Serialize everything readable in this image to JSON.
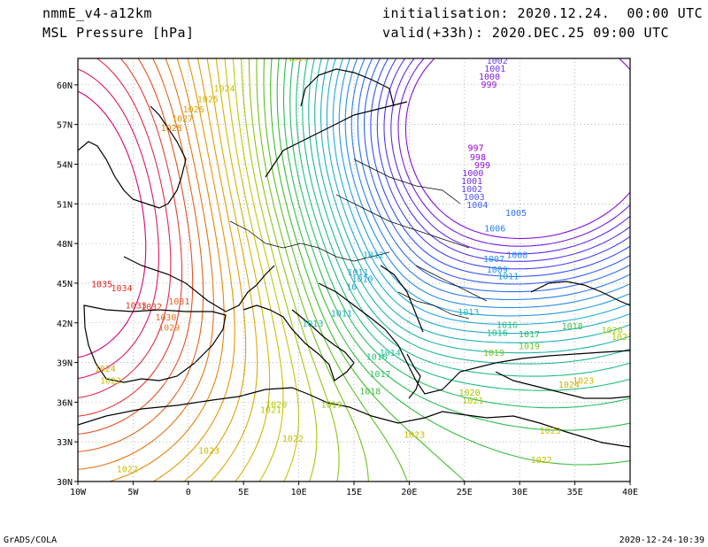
{
  "header": {
    "model": "nmmE_v4-a12km",
    "field": "MSL Pressure [hPa]",
    "init": "initialisation: 2020.12.24.  00:00 UTC",
    "valid": "valid(+33h): 2020.DEC.25 09:00 UTC"
  },
  "footer": {
    "left": "GrADS/COLA",
    "right": "2020-12-24-10:39"
  },
  "axes": {
    "lat_ticks": [
      "30N",
      "33N",
      "36N",
      "39N",
      "42N",
      "45N",
      "48N",
      "51N",
      "54N",
      "57N",
      "60N"
    ],
    "lon_ticks": [
      "10W",
      "5W",
      "0",
      "5E",
      "10E",
      "15E",
      "20E",
      "25E",
      "30E",
      "35E",
      "40E"
    ],
    "lat_range": [
      30,
      62
    ],
    "lon_range": [
      -10,
      40
    ]
  },
  "isobar_labels": [
    {
      "t": "1025",
      "lon": 0.8,
      "lat": 58.7,
      "c": "#d8b000"
    },
    {
      "t": "1026",
      "lon": -0.5,
      "lat": 57.9,
      "c": "#e0a000"
    },
    {
      "t": "1027",
      "lon": -1.5,
      "lat": 57.2,
      "c": "#e09000"
    },
    {
      "t": "1028",
      "lon": -2.5,
      "lat": 56.5,
      "c": "#e08000"
    },
    {
      "t": "1024",
      "lon": 2.3,
      "lat": 59.5,
      "c": "#c8c000"
    },
    {
      "t": "1023",
      "lon": 9.0,
      "lat": 61.8,
      "c": "#c8c800"
    },
    {
      "t": "1035",
      "lon": -8.8,
      "lat": 44.7,
      "c": "#e02020"
    },
    {
      "t": "1034",
      "lon": -7.0,
      "lat": 44.4,
      "c": "#e03020"
    },
    {
      "t": "1033",
      "lon": -5.7,
      "lat": 43.1,
      "c": "#e03820"
    },
    {
      "t": "1032",
      "lon": -4.3,
      "lat": 43.0,
      "c": "#e04020"
    },
    {
      "t": "1031",
      "lon": -1.8,
      "lat": 43.4,
      "c": "#e06020"
    },
    {
      "t": "1030",
      "lon": -3.0,
      "lat": 42.2,
      "c": "#e07020"
    },
    {
      "t": "1029",
      "lon": -2.7,
      "lat": 41.4,
      "c": "#e08020"
    },
    {
      "t": "1024",
      "lon": -8.5,
      "lat": 38.3,
      "c": "#d0b000"
    },
    {
      "t": "1022",
      "lon": -8.0,
      "lat": 37.4,
      "c": "#c8c000"
    },
    {
      "t": "1021",
      "lon": 6.5,
      "lat": 35.2,
      "c": "#b8c800"
    },
    {
      "t": "1020",
      "lon": 7.0,
      "lat": 35.6,
      "c": "#b0c800"
    },
    {
      "t": "1019",
      "lon": 12.0,
      "lat": 35.6,
      "c": "#90c800"
    },
    {
      "t": "1022",
      "lon": -6.5,
      "lat": 30.7,
      "c": "#c8c000"
    },
    {
      "t": "1023",
      "lon": 0.9,
      "lat": 32.1,
      "c": "#d0b800"
    },
    {
      "t": "1022",
      "lon": 8.5,
      "lat": 33.0,
      "c": "#c8c000"
    },
    {
      "t": "1023",
      "lon": 19.5,
      "lat": 33.3,
      "c": "#d0b800"
    },
    {
      "t": "1023",
      "lon": 31.8,
      "lat": 33.6,
      "c": "#d0b800"
    },
    {
      "t": "1022",
      "lon": 31.0,
      "lat": 31.4,
      "c": "#c8c000"
    },
    {
      "t": "1021",
      "lon": 24.8,
      "lat": 35.9,
      "c": "#b8c800"
    },
    {
      "t": "1020",
      "lon": 24.5,
      "lat": 36.5,
      "c": "#a8c800"
    },
    {
      "t": "1024",
      "lon": 33.5,
      "lat": 37.1,
      "c": "#d0b000"
    },
    {
      "t": "1023",
      "lon": 34.8,
      "lat": 37.4,
      "c": "#d0b800"
    },
    {
      "t": "1012",
      "lon": 15.8,
      "lat": 46.9,
      "c": "#20b0c0"
    },
    {
      "t": "1011",
      "lon": 14.4,
      "lat": 45.6,
      "c": "#20a8c8"
    },
    {
      "t": "1010",
      "lon": 14.8,
      "lat": 45.1,
      "c": "#1ea0c8"
    },
    {
      "t": "10",
      "lon": 14.3,
      "lat": 44.5,
      "c": "#1ea0c8"
    },
    {
      "t": "1011",
      "lon": 12.9,
      "lat": 42.5,
      "c": "#20a8c8"
    },
    {
      "t": "1013",
      "lon": 10.3,
      "lat": 41.7,
      "c": "#20b8b0"
    },
    {
      "t": "1013",
      "lon": 24.4,
      "lat": 42.6,
      "c": "#20b8b0"
    },
    {
      "t": "1014",
      "lon": 17.3,
      "lat": 39.5,
      "c": "#20c0a0"
    },
    {
      "t": "1016",
      "lon": 16.1,
      "lat": 39.2,
      "c": "#20c080"
    },
    {
      "t": "1017",
      "lon": 16.4,
      "lat": 37.9,
      "c": "#30c060"
    },
    {
      "t": "1018",
      "lon": 15.5,
      "lat": 36.6,
      "c": "#40c040"
    },
    {
      "t": "1016",
      "lon": 27.9,
      "lat": 41.6,
      "c": "#20c080"
    },
    {
      "t": "1016",
      "lon": 27.0,
      "lat": 41.0,
      "c": "#20c080"
    },
    {
      "t": "1017",
      "lon": 29.9,
      "lat": 40.9,
      "c": "#30c060"
    },
    {
      "t": "1018",
      "lon": 33.8,
      "lat": 41.5,
      "c": "#40c040"
    },
    {
      "t": "1019",
      "lon": 29.9,
      "lat": 40.0,
      "c": "#70c820"
    },
    {
      "t": "1019",
      "lon": 26.7,
      "lat": 39.5,
      "c": "#70c820"
    },
    {
      "t": "1020",
      "lon": 37.4,
      "lat": 41.2,
      "c": "#a0c800"
    },
    {
      "t": "1021",
      "lon": 38.3,
      "lat": 40.7,
      "c": "#b8c800"
    },
    {
      "t": "1007",
      "lon": 26.7,
      "lat": 46.6,
      "c": "#1e90ff"
    },
    {
      "t": "1008",
      "lon": 28.8,
      "lat": 46.9,
      "c": "#1e90ff"
    },
    {
      "t": "1009",
      "lon": 27.0,
      "lat": 45.8,
      "c": "#1c98e8"
    },
    {
      "t": "1011",
      "lon": 28.0,
      "lat": 45.3,
      "c": "#20a8c8"
    },
    {
      "t": "1006",
      "lon": 26.8,
      "lat": 48.9,
      "c": "#2080ff"
    },
    {
      "t": "1005",
      "lon": 28.7,
      "lat": 50.1,
      "c": "#3070ff"
    },
    {
      "t": "1004",
      "lon": 25.2,
      "lat": 50.7,
      "c": "#4060ff"
    },
    {
      "t": "1003",
      "lon": 24.9,
      "lat": 51.3,
      "c": "#5050ff"
    },
    {
      "t": "1002",
      "lon": 24.7,
      "lat": 51.9,
      "c": "#6040ff"
    },
    {
      "t": "1001",
      "lon": 24.7,
      "lat": 52.5,
      "c": "#7030f0"
    },
    {
      "t": "1000",
      "lon": 24.8,
      "lat": 53.1,
      "c": "#8020e0"
    },
    {
      "t": "999",
      "lon": 25.9,
      "lat": 53.7,
      "c": "#9010e0"
    },
    {
      "t": "998",
      "lon": 25.5,
      "lat": 54.3,
      "c": "#9010e0"
    },
    {
      "t": "997",
      "lon": 25.3,
      "lat": 55.0,
      "c": "#9800d8"
    },
    {
      "t": "999",
      "lon": 26.5,
      "lat": 59.8,
      "c": "#9010e0"
    },
    {
      "t": "1000",
      "lon": 26.3,
      "lat": 60.4,
      "c": "#8020e0"
    },
    {
      "t": "1001",
      "lon": 26.8,
      "lat": 61.0,
      "c": "#7030f0"
    },
    {
      "t": "1002",
      "lon": 27.0,
      "lat": 61.6,
      "c": "#6040ff"
    }
  ],
  "colors": {
    "low": "#9800d8",
    "mid": "#20b8b0",
    "high": "#e02020"
  }
}
